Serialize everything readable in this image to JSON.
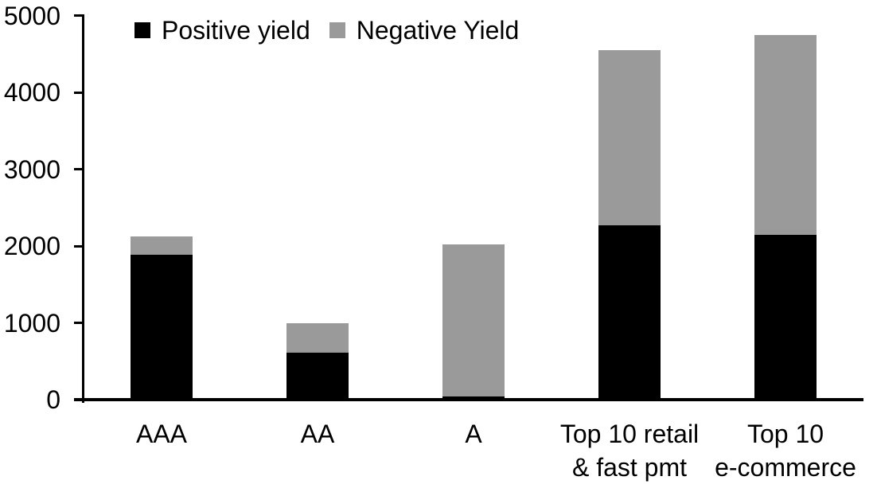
{
  "chart_data": {
    "type": "bar",
    "stacked": true,
    "title": "",
    "categories": [
      "AAA",
      "AA",
      "A",
      "Top 10 retail\n& fast pmt",
      "Top 10\ne-commerce"
    ],
    "series": [
      {
        "name": "Positive yield",
        "color": "#000000",
        "values": [
          1890,
          610,
          45,
          2270,
          2140
        ]
      },
      {
        "name": "Negative Yield",
        "color": "#9a9a9a",
        "values": [
          230,
          390,
          1980,
          2280,
          2610
        ]
      }
    ],
    "totals": [
      2120,
      1000,
      2025,
      4550,
      4750
    ],
    "xlabel": "",
    "ylabel": "",
    "ylim": [
      0,
      5000
    ],
    "y_ticks": [
      0,
      1000,
      2000,
      3000,
      4000,
      5000
    ],
    "grid": false,
    "legend_position": "top-left",
    "axis_color": "#000000",
    "background_color": "#ffffff"
  }
}
